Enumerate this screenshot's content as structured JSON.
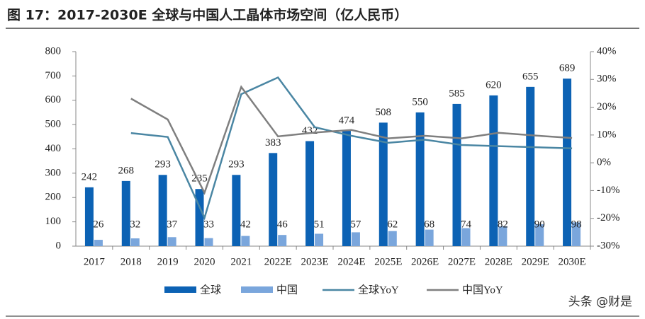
{
  "chart_data": {
    "type": "bar",
    "title": "图 17：2017-2030E 全球与中国人工晶体市场空间（亿人民币）",
    "watermark": "头条 @财是",
    "categories": [
      "2017",
      "2018",
      "2019",
      "2020",
      "2021",
      "2022E",
      "2023E",
      "2024E",
      "2025E",
      "2026E",
      "2027E",
      "2028E",
      "2029E",
      "2030E"
    ],
    "series": [
      {
        "name": "全球",
        "type": "bar",
        "color": "#0c62b4",
        "values": [
          242,
          268,
          293,
          235,
          293,
          383,
          432,
          474,
          508,
          550,
          585,
          620,
          655,
          689
        ]
      },
      {
        "name": "中国",
        "type": "bar",
        "color": "#7aa6dc",
        "values": [
          26,
          32,
          37,
          33,
          42,
          46,
          51,
          57,
          62,
          68,
          74,
          82,
          90,
          98
        ]
      },
      {
        "name": "全球YoY",
        "type": "line",
        "axis": "y2",
        "color": "#4a86a3",
        "values": [
          null,
          10.7,
          9.3,
          -19.8,
          24.7,
          30.7,
          12.8,
          9.7,
          7.2,
          8.3,
          6.4,
          6.0,
          5.6,
          5.2
        ]
      },
      {
        "name": "中国YoY",
        "type": "line",
        "axis": "y2",
        "color": "#7f7f7f",
        "values": [
          null,
          23.1,
          15.6,
          -10.8,
          27.3,
          9.5,
          10.9,
          11.8,
          8.8,
          9.7,
          8.8,
          10.8,
          9.8,
          8.9
        ]
      }
    ],
    "ylim": [
      0,
      800
    ],
    "yticks": [
      0,
      100,
      200,
      300,
      400,
      500,
      600,
      700,
      800
    ],
    "y2lim": [
      -30,
      40
    ],
    "y2ticks": [
      {
        "value": -30,
        "label": "-30%"
      },
      {
        "value": -20,
        "label": "-20%"
      },
      {
        "value": -10,
        "label": "-10%"
      },
      {
        "value": 0,
        "label": "0%"
      },
      {
        "value": 10,
        "label": "10%"
      },
      {
        "value": 20,
        "label": "20%"
      },
      {
        "value": 30,
        "label": "30%"
      },
      {
        "value": 40,
        "label": "40%"
      }
    ]
  }
}
